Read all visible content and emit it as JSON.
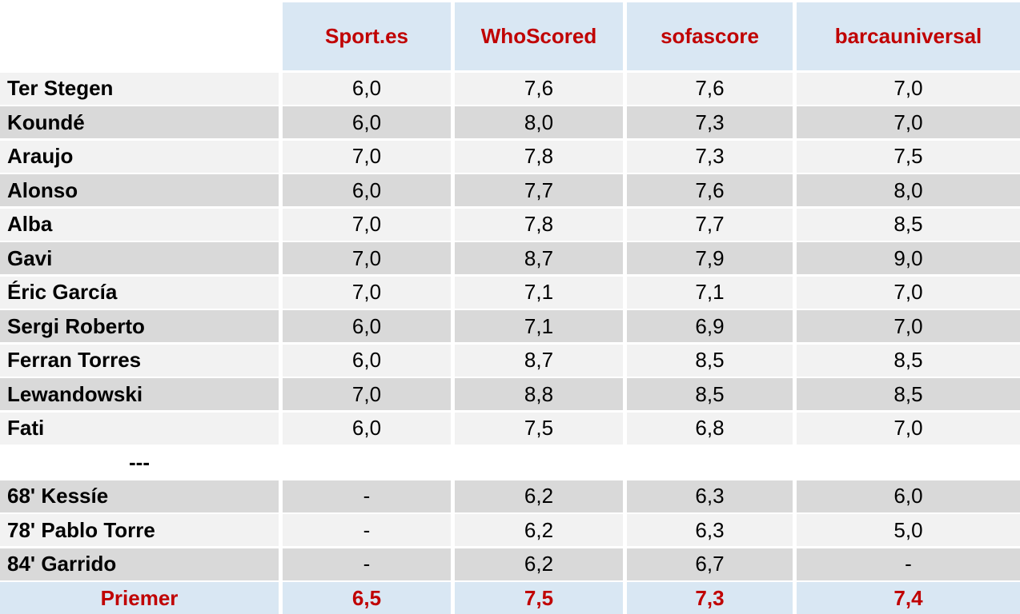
{
  "colors": {
    "header_bg": "#d9e7f3",
    "row_light": "#f2f2f2",
    "row_dark": "#d9d9d9",
    "accent_red": "#c00000",
    "text": "#000000"
  },
  "table": {
    "columns": [
      "Sport.es",
      "WhoScored",
      "sofascore",
      "barcauniversal"
    ],
    "rows": [
      {
        "name": "Ter Stegen",
        "values": [
          "6,0",
          "7,6",
          "7,6",
          "7,0"
        ]
      },
      {
        "name": "Koundé",
        "values": [
          "6,0",
          "8,0",
          "7,3",
          "7,0"
        ]
      },
      {
        "name": "Araujo",
        "values": [
          "7,0",
          "7,8",
          "7,3",
          "7,5"
        ]
      },
      {
        "name": "Alonso",
        "values": [
          "6,0",
          "7,7",
          "7,6",
          "8,0"
        ]
      },
      {
        "name": "Alba",
        "values": [
          "7,0",
          "7,8",
          "7,7",
          "8,5"
        ]
      },
      {
        "name": "Gavi",
        "values": [
          "7,0",
          "8,7",
          "7,9",
          "9,0"
        ]
      },
      {
        "name": "Éric García",
        "values": [
          "7,0",
          "7,1",
          "7,1",
          "7,0"
        ]
      },
      {
        "name": "Sergi Roberto",
        "values": [
          "6,0",
          "7,1",
          "6,9",
          "7,0"
        ]
      },
      {
        "name": "Ferran Torres",
        "values": [
          "6,0",
          "8,7",
          "8,5",
          "8,5"
        ]
      },
      {
        "name": "Lewandowski",
        "values": [
          "7,0",
          "8,8",
          "8,5",
          "8,5"
        ]
      },
      {
        "name": "Fati",
        "values": [
          "6,0",
          "7,5",
          "6,8",
          "7,0"
        ]
      }
    ],
    "separator_label": "---",
    "substitutes": [
      {
        "name": "68' Kessíe",
        "values": [
          "-",
          "6,2",
          "6,3",
          "6,0"
        ]
      },
      {
        "name": "78' Pablo Torre",
        "values": [
          "-",
          "6,2",
          "6,3",
          "5,0"
        ]
      },
      {
        "name": "84' Garrido",
        "values": [
          "-",
          "6,2",
          "6,7",
          "-"
        ]
      }
    ],
    "summary": {
      "name": "Priemer",
      "values": [
        "6,5",
        "7,5",
        "7,3",
        "7,4"
      ]
    }
  },
  "chart_data": {
    "type": "table",
    "columns": [
      "",
      "Sport.es",
      "WhoScored",
      "sofascore",
      "barcauniversal"
    ],
    "rows": [
      [
        "Ter Stegen",
        "6,0",
        "7,6",
        "7,6",
        "7,0"
      ],
      [
        "Koundé",
        "6,0",
        "8,0",
        "7,3",
        "7,0"
      ],
      [
        "Araujo",
        "7,0",
        "7,8",
        "7,3",
        "7,5"
      ],
      [
        "Alonso",
        "6,0",
        "7,7",
        "7,6",
        "8,0"
      ],
      [
        "Alba",
        "7,0",
        "7,8",
        "7,7",
        "8,5"
      ],
      [
        "Gavi",
        "7,0",
        "8,7",
        "7,9",
        "9,0"
      ],
      [
        "Éric García",
        "7,0",
        "7,1",
        "7,1",
        "7,0"
      ],
      [
        "Sergi Roberto",
        "6,0",
        "7,1",
        "6,9",
        "7,0"
      ],
      [
        "Ferran Torres",
        "6,0",
        "8,7",
        "8,5",
        "8,5"
      ],
      [
        "Lewandowski",
        "7,0",
        "8,8",
        "8,5",
        "8,5"
      ],
      [
        "Fati",
        "6,0",
        "7,5",
        "6,8",
        "7,0"
      ],
      [
        "---",
        "",
        "",
        "",
        ""
      ],
      [
        "68' Kessíe",
        "-",
        "6,2",
        "6,3",
        "6,0"
      ],
      [
        "78' Pablo Torre",
        "-",
        "6,2",
        "6,3",
        "5,0"
      ],
      [
        "84' Garrido",
        "-",
        "6,2",
        "6,7",
        "-"
      ],
      [
        "Priemer",
        "6,5",
        "7,5",
        "7,3",
        "7,4"
      ]
    ]
  }
}
